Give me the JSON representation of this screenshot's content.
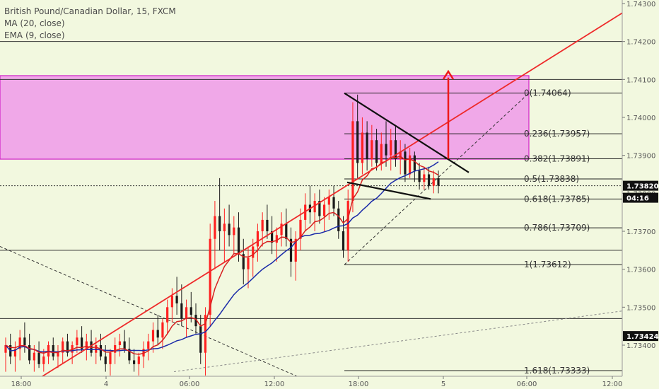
{
  "legend": {
    "symbol": "British Pound/Canadian Dollar, 15, FXCM",
    "ma": "MA (20, close)",
    "ema": "EMA (9, close)"
  },
  "colors": {
    "background": "#f2f8df",
    "zone_fill": "#f0a8e8",
    "zone_border": "#d020c8",
    "up_candle": "#ff2020",
    "down_candle": "#1a1a1a",
    "ma": "#d62020",
    "ema": "#1a2aa8",
    "trendline": "#ee2a2a",
    "price_tag_current": "#111111",
    "price_tag_level": "#111111"
  },
  "chart_data": {
    "type": "candlestick",
    "symbol": "British Pound/Canadian Dollar",
    "timeframe": "15",
    "source": "FXCM",
    "ylim": [
      1.7332,
      1.743
    ],
    "y_ticks": [
      1.743,
      1.742,
      1.741,
      1.74,
      1.739,
      1.738,
      1.737,
      1.736,
      1.735,
      1.734
    ],
    "y_tick_labels": [
      "1.74300",
      "1.74200",
      "1.74100",
      "1.74000",
      "1.73900",
      "1.73800",
      "1.73700",
      "1.73600",
      "1.73500",
      "1.73400"
    ],
    "x_tick_labels": [
      "18:00",
      "4",
      "06:00",
      "12:00",
      "18:00",
      "5",
      "06:00",
      "12:00"
    ],
    "current_price": "1.73820",
    "countdown": "04:16",
    "level_price": "1.73424",
    "fib_levels": [
      {
        "ratio": "0",
        "price": "1.74064"
      },
      {
        "ratio": "0.236",
        "price": "1.73957"
      },
      {
        "ratio": "0.382",
        "price": "1.73891"
      },
      {
        "ratio": "0.5",
        "price": "1.73838"
      },
      {
        "ratio": "0.618",
        "price": "1.73785"
      },
      {
        "ratio": "0.786",
        "price": "1.73709"
      },
      {
        "ratio": "1",
        "price": "1.73612"
      },
      {
        "ratio": "1.618",
        "price": "1.73333"
      }
    ],
    "supply_zone": {
      "low": 1.7389,
      "high": 1.7411
    },
    "horizontal_levels": [
      1.742,
      1.741,
      1.7365,
      1.7347
    ],
    "candles": [
      {
        "o": 1.7338,
        "h": 1.7342,
        "l": 1.7333,
        "c": 1.734
      },
      {
        "o": 1.734,
        "h": 1.7343,
        "l": 1.7335,
        "c": 1.7337
      },
      {
        "o": 1.7337,
        "h": 1.7341,
        "l": 1.7333,
        "c": 1.7339
      },
      {
        "o": 1.7339,
        "h": 1.7344,
        "l": 1.7336,
        "c": 1.7342
      },
      {
        "o": 1.7342,
        "h": 1.7346,
        "l": 1.7338,
        "c": 1.734
      },
      {
        "o": 1.734,
        "h": 1.7343,
        "l": 1.7335,
        "c": 1.7336
      },
      {
        "o": 1.7336,
        "h": 1.734,
        "l": 1.7333,
        "c": 1.7338
      },
      {
        "o": 1.7338,
        "h": 1.7341,
        "l": 1.7334,
        "c": 1.7335
      },
      {
        "o": 1.7335,
        "h": 1.7339,
        "l": 1.7333,
        "c": 1.7337
      },
      {
        "o": 1.7337,
        "h": 1.7341,
        "l": 1.7335,
        "c": 1.734
      },
      {
        "o": 1.734,
        "h": 1.7342,
        "l": 1.7336,
        "c": 1.7337
      },
      {
        "o": 1.7337,
        "h": 1.734,
        "l": 1.7334,
        "c": 1.7338
      },
      {
        "o": 1.7338,
        "h": 1.7342,
        "l": 1.7335,
        "c": 1.7341
      },
      {
        "o": 1.7341,
        "h": 1.7343,
        "l": 1.7337,
        "c": 1.7338
      },
      {
        "o": 1.7338,
        "h": 1.7341,
        "l": 1.7335,
        "c": 1.734
      },
      {
        "o": 1.734,
        "h": 1.7344,
        "l": 1.7338,
        "c": 1.7342
      },
      {
        "o": 1.7342,
        "h": 1.7345,
        "l": 1.7338,
        "c": 1.7339
      },
      {
        "o": 1.7339,
        "h": 1.7343,
        "l": 1.7336,
        "c": 1.7341
      },
      {
        "o": 1.7341,
        "h": 1.7344,
        "l": 1.7337,
        "c": 1.7338
      },
      {
        "o": 1.7338,
        "h": 1.7342,
        "l": 1.7335,
        "c": 1.734
      },
      {
        "o": 1.734,
        "h": 1.7343,
        "l": 1.7336,
        "c": 1.7337
      },
      {
        "o": 1.7337,
        "h": 1.734,
        "l": 1.7333,
        "c": 1.7335
      },
      {
        "o": 1.7335,
        "h": 1.7339,
        "l": 1.7332,
        "c": 1.7338
      },
      {
        "o": 1.7338,
        "h": 1.7342,
        "l": 1.7335,
        "c": 1.734
      },
      {
        "o": 1.734,
        "h": 1.7343,
        "l": 1.7337,
        "c": 1.7341
      },
      {
        "o": 1.7341,
        "h": 1.7344,
        "l": 1.7338,
        "c": 1.7339
      },
      {
        "o": 1.7339,
        "h": 1.7342,
        "l": 1.7335,
        "c": 1.7336
      },
      {
        "o": 1.7336,
        "h": 1.7339,
        "l": 1.7333,
        "c": 1.7335
      },
      {
        "o": 1.7335,
        "h": 1.7338,
        "l": 1.7332,
        "c": 1.7337
      },
      {
        "o": 1.7337,
        "h": 1.7341,
        "l": 1.7334,
        "c": 1.7339
      },
      {
        "o": 1.7339,
        "h": 1.7343,
        "l": 1.7336,
        "c": 1.7341
      },
      {
        "o": 1.7341,
        "h": 1.7346,
        "l": 1.7338,
        "c": 1.7344
      },
      {
        "o": 1.7344,
        "h": 1.7348,
        "l": 1.734,
        "c": 1.7342
      },
      {
        "o": 1.7342,
        "h": 1.7347,
        "l": 1.7339,
        "c": 1.7346
      },
      {
        "o": 1.7346,
        "h": 1.7352,
        "l": 1.7343,
        "c": 1.735
      },
      {
        "o": 1.735,
        "h": 1.7355,
        "l": 1.7346,
        "c": 1.7353
      },
      {
        "o": 1.7353,
        "h": 1.7358,
        "l": 1.7348,
        "c": 1.7351
      },
      {
        "o": 1.7351,
        "h": 1.7356,
        "l": 1.7345,
        "c": 1.7347
      },
      {
        "o": 1.7347,
        "h": 1.7352,
        "l": 1.7342,
        "c": 1.735
      },
      {
        "o": 1.735,
        "h": 1.7354,
        "l": 1.7346,
        "c": 1.7348
      },
      {
        "o": 1.7348,
        "h": 1.7351,
        "l": 1.7343,
        "c": 1.7345
      },
      {
        "o": 1.7345,
        "h": 1.7348,
        "l": 1.7335,
        "c": 1.7338
      },
      {
        "o": 1.7338,
        "h": 1.735,
        "l": 1.7332,
        "c": 1.7348
      },
      {
        "o": 1.7348,
        "h": 1.7372,
        "l": 1.7345,
        "c": 1.7368
      },
      {
        "o": 1.7368,
        "h": 1.7378,
        "l": 1.736,
        "c": 1.7374
      },
      {
        "o": 1.7374,
        "h": 1.7384,
        "l": 1.7365,
        "c": 1.737
      },
      {
        "o": 1.737,
        "h": 1.7376,
        "l": 1.7362,
        "c": 1.7372
      },
      {
        "o": 1.7372,
        "h": 1.7377,
        "l": 1.7366,
        "c": 1.7369
      },
      {
        "o": 1.7369,
        "h": 1.7374,
        "l": 1.7364,
        "c": 1.7371
      },
      {
        "o": 1.7371,
        "h": 1.7375,
        "l": 1.7362,
        "c": 1.7364
      },
      {
        "o": 1.7364,
        "h": 1.7368,
        "l": 1.7356,
        "c": 1.736
      },
      {
        "o": 1.736,
        "h": 1.7366,
        "l": 1.7355,
        "c": 1.7363
      },
      {
        "o": 1.7363,
        "h": 1.7368,
        "l": 1.7358,
        "c": 1.7366
      },
      {
        "o": 1.7366,
        "h": 1.7372,
        "l": 1.7362,
        "c": 1.737
      },
      {
        "o": 1.737,
        "h": 1.7375,
        "l": 1.7366,
        "c": 1.7373
      },
      {
        "o": 1.7373,
        "h": 1.7377,
        "l": 1.7368,
        "c": 1.737
      },
      {
        "o": 1.737,
        "h": 1.7374,
        "l": 1.7364,
        "c": 1.7367
      },
      {
        "o": 1.7367,
        "h": 1.7371,
        "l": 1.7362,
        "c": 1.7369
      },
      {
        "o": 1.7369,
        "h": 1.7375,
        "l": 1.7366,
        "c": 1.7372
      },
      {
        "o": 1.7372,
        "h": 1.7376,
        "l": 1.7366,
        "c": 1.7368
      },
      {
        "o": 1.7368,
        "h": 1.7371,
        "l": 1.7358,
        "c": 1.7362
      },
      {
        "o": 1.7362,
        "h": 1.737,
        "l": 1.7357,
        "c": 1.7368
      },
      {
        "o": 1.7368,
        "h": 1.7376,
        "l": 1.7365,
        "c": 1.7373
      },
      {
        "o": 1.7373,
        "h": 1.738,
        "l": 1.737,
        "c": 1.7377
      },
      {
        "o": 1.7377,
        "h": 1.7382,
        "l": 1.7372,
        "c": 1.7375
      },
      {
        "o": 1.7375,
        "h": 1.738,
        "l": 1.737,
        "c": 1.7378
      },
      {
        "o": 1.7378,
        "h": 1.7381,
        "l": 1.7372,
        "c": 1.7374
      },
      {
        "o": 1.7374,
        "h": 1.7379,
        "l": 1.737,
        "c": 1.7377
      },
      {
        "o": 1.7377,
        "h": 1.7381,
        "l": 1.7373,
        "c": 1.7379
      },
      {
        "o": 1.7379,
        "h": 1.7382,
        "l": 1.7374,
        "c": 1.7376
      },
      {
        "o": 1.7376,
        "h": 1.7378,
        "l": 1.7368,
        "c": 1.737
      },
      {
        "o": 1.737,
        "h": 1.7374,
        "l": 1.7363,
        "c": 1.7365
      },
      {
        "o": 1.7365,
        "h": 1.7381,
        "l": 1.7362,
        "c": 1.7378
      },
      {
        "o": 1.7378,
        "h": 1.7404,
        "l": 1.7375,
        "c": 1.7399
      },
      {
        "o": 1.7399,
        "h": 1.7406,
        "l": 1.7384,
        "c": 1.7388
      },
      {
        "o": 1.7388,
        "h": 1.74,
        "l": 1.7385,
        "c": 1.7396
      },
      {
        "o": 1.7396,
        "h": 1.7399,
        "l": 1.7386,
        "c": 1.7389
      },
      {
        "o": 1.7389,
        "h": 1.7398,
        "l": 1.7387,
        "c": 1.7394
      },
      {
        "o": 1.7394,
        "h": 1.7397,
        "l": 1.7386,
        "c": 1.7388
      },
      {
        "o": 1.7388,
        "h": 1.7396,
        "l": 1.7386,
        "c": 1.7393
      },
      {
        "o": 1.7393,
        "h": 1.7399,
        "l": 1.7387,
        "c": 1.739
      },
      {
        "o": 1.739,
        "h": 1.7397,
        "l": 1.7386,
        "c": 1.7394
      },
      {
        "o": 1.7394,
        "h": 1.7398,
        "l": 1.7387,
        "c": 1.7389
      },
      {
        "o": 1.7389,
        "h": 1.7394,
        "l": 1.7385,
        "c": 1.7391
      },
      {
        "o": 1.7391,
        "h": 1.7393,
        "l": 1.7383,
        "c": 1.7385
      },
      {
        "o": 1.7385,
        "h": 1.7392,
        "l": 1.7384,
        "c": 1.739
      },
      {
        "o": 1.739,
        "h": 1.7391,
        "l": 1.7383,
        "c": 1.7386
      },
      {
        "o": 1.7386,
        "h": 1.7388,
        "l": 1.7381,
        "c": 1.7383
      },
      {
        "o": 1.7383,
        "h": 1.7387,
        "l": 1.7381,
        "c": 1.7385
      },
      {
        "o": 1.7385,
        "h": 1.7387,
        "l": 1.7381,
        "c": 1.7382
      },
      {
        "o": 1.7382,
        "h": 1.7386,
        "l": 1.738,
        "c": 1.7384
      },
      {
        "o": 1.7384,
        "h": 1.7386,
        "l": 1.738,
        "c": 1.7382
      }
    ]
  }
}
